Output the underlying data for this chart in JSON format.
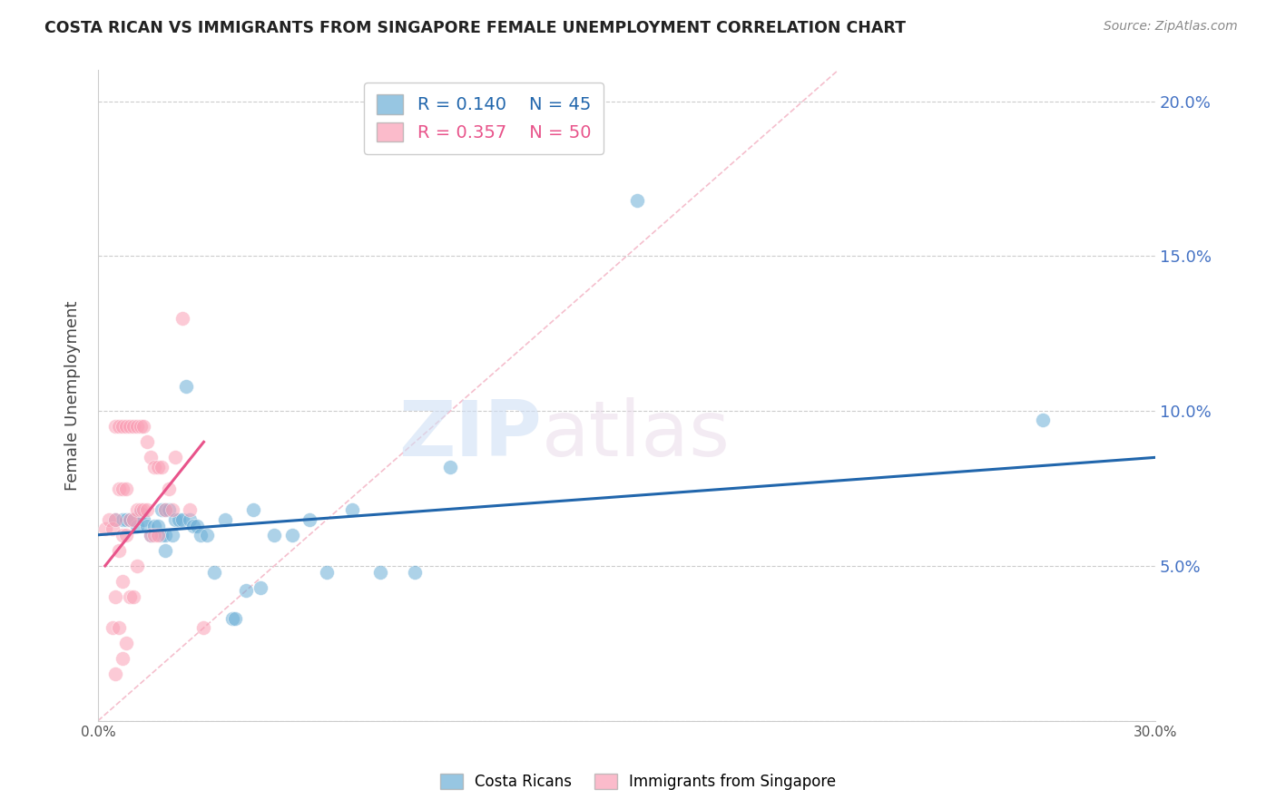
{
  "title": "COSTA RICAN VS IMMIGRANTS FROM SINGAPORE FEMALE UNEMPLOYMENT CORRELATION CHART",
  "source": "Source: ZipAtlas.com",
  "xlabel": "",
  "ylabel": "Female Unemployment",
  "xlim": [
    0.0,
    0.3
  ],
  "ylim": [
    0.0,
    0.21
  ],
  "xticks": [
    0.0,
    0.05,
    0.1,
    0.15,
    0.2,
    0.25,
    0.3
  ],
  "xtick_labels": [
    "0.0%",
    "",
    "",
    "",
    "",
    "",
    "30.0%"
  ],
  "ytick_positions": [
    0.0,
    0.05,
    0.1,
    0.15,
    0.2
  ],
  "ytick_labels_right": [
    "",
    "5.0%",
    "10.0%",
    "15.0%",
    "20.0%"
  ],
  "legend_r1": "R = 0.140",
  "legend_n1": "N = 45",
  "legend_r2": "R = 0.357",
  "legend_n2": "N = 50",
  "color_blue": "#6baed6",
  "color_pink": "#fa9fb5",
  "color_blue_line": "#2166ac",
  "color_pink_line": "#e8538a",
  "color_diag_line": "#f4b8c8",
  "color_right_axis": "#4472c4",
  "watermark_zip": "ZIP",
  "watermark_atlas": "atlas",
  "blue_x": [
    0.005,
    0.007,
    0.008,
    0.009,
    0.01,
    0.011,
    0.012,
    0.013,
    0.014,
    0.015,
    0.016,
    0.017,
    0.018,
    0.018,
    0.019,
    0.019,
    0.019,
    0.02,
    0.021,
    0.022,
    0.023,
    0.024,
    0.025,
    0.026,
    0.027,
    0.028,
    0.029,
    0.031,
    0.033,
    0.036,
    0.038,
    0.039,
    0.042,
    0.044,
    0.046,
    0.05,
    0.055,
    0.06,
    0.065,
    0.072,
    0.08,
    0.09,
    0.1,
    0.153,
    0.268
  ],
  "blue_y": [
    0.065,
    0.065,
    0.065,
    0.065,
    0.065,
    0.063,
    0.067,
    0.065,
    0.063,
    0.06,
    0.063,
    0.063,
    0.068,
    0.06,
    0.068,
    0.06,
    0.055,
    0.068,
    0.06,
    0.065,
    0.065,
    0.065,
    0.108,
    0.065,
    0.063,
    0.063,
    0.06,
    0.06,
    0.048,
    0.065,
    0.033,
    0.033,
    0.042,
    0.068,
    0.043,
    0.06,
    0.06,
    0.065,
    0.048,
    0.068,
    0.048,
    0.048,
    0.082,
    0.168,
    0.097
  ],
  "pink_x": [
    0.002,
    0.003,
    0.004,
    0.004,
    0.005,
    0.005,
    0.005,
    0.005,
    0.006,
    0.006,
    0.006,
    0.006,
    0.007,
    0.007,
    0.007,
    0.007,
    0.007,
    0.008,
    0.008,
    0.008,
    0.008,
    0.009,
    0.009,
    0.009,
    0.01,
    0.01,
    0.01,
    0.011,
    0.011,
    0.011,
    0.012,
    0.012,
    0.013,
    0.013,
    0.014,
    0.014,
    0.015,
    0.015,
    0.016,
    0.016,
    0.017,
    0.017,
    0.018,
    0.019,
    0.02,
    0.021,
    0.022,
    0.024,
    0.026,
    0.03
  ],
  "pink_y": [
    0.062,
    0.065,
    0.062,
    0.03,
    0.095,
    0.065,
    0.04,
    0.015,
    0.095,
    0.075,
    0.055,
    0.03,
    0.095,
    0.075,
    0.06,
    0.045,
    0.02,
    0.095,
    0.075,
    0.06,
    0.025,
    0.095,
    0.065,
    0.04,
    0.095,
    0.065,
    0.04,
    0.095,
    0.068,
    0.05,
    0.095,
    0.068,
    0.095,
    0.068,
    0.09,
    0.068,
    0.085,
    0.06,
    0.082,
    0.06,
    0.082,
    0.06,
    0.082,
    0.068,
    0.075,
    0.068,
    0.085,
    0.13,
    0.068,
    0.03
  ],
  "blue_line_x": [
    0.0,
    0.3
  ],
  "blue_line_y": [
    0.06,
    0.085
  ],
  "pink_line_x": [
    0.002,
    0.03
  ],
  "pink_line_y": [
    0.05,
    0.09
  ],
  "diag_line_x": [
    0.0,
    0.21
  ],
  "diag_line_y": [
    0.0,
    0.21
  ]
}
